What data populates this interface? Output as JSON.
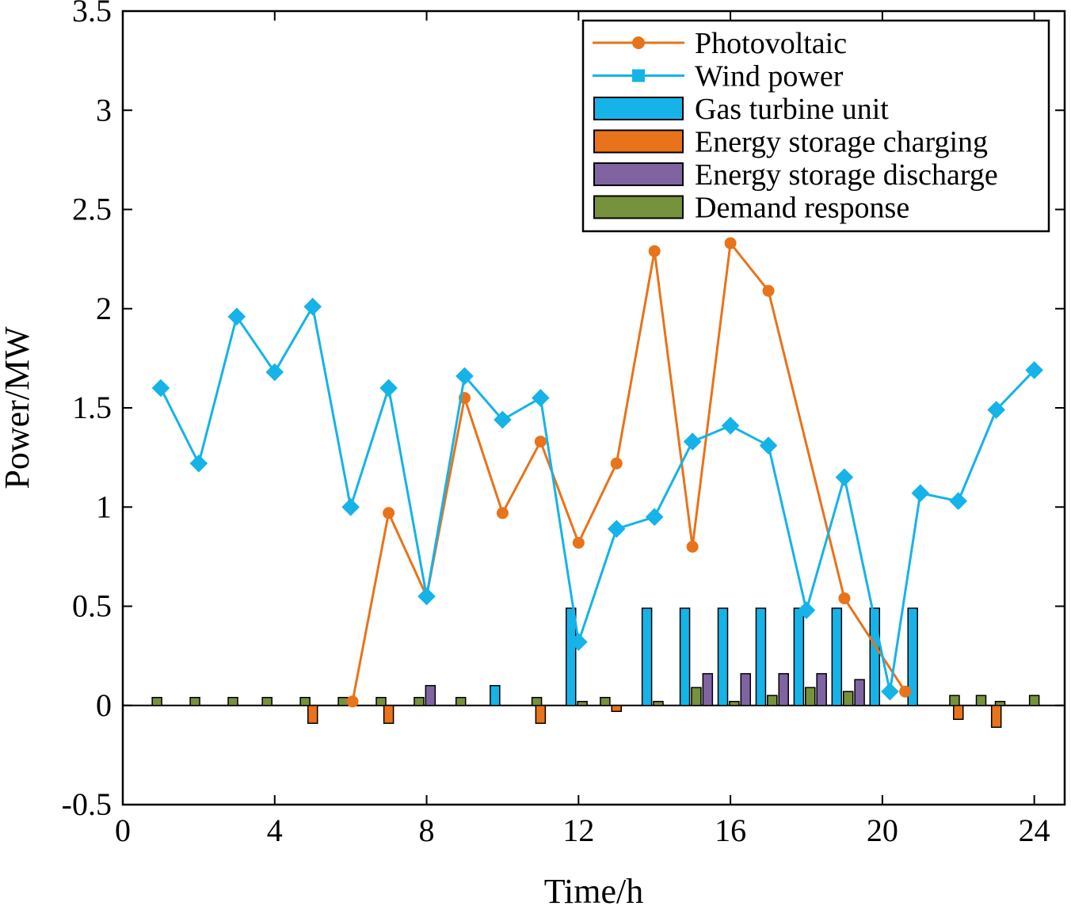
{
  "chart_data": {
    "type": "bar+line",
    "xlabel": "Time/h",
    "ylabel": "Power/MW",
    "xlim": [
      0,
      24.8
    ],
    "ylim": [
      -0.5,
      3.5
    ],
    "xticks": [
      0,
      4,
      8,
      12,
      16,
      20,
      24
    ],
    "yticks": [
      -0.5,
      0,
      0.5,
      1,
      1.5,
      2,
      2.5,
      3,
      3.5
    ],
    "ytick_labels": [
      "-0.5",
      "0",
      "0.5",
      "1",
      "1.5",
      "2",
      "2.5",
      "3",
      "3.5"
    ],
    "legend_position": "top-right",
    "lines": [
      {
        "name": "Photovoltaic",
        "color": "#E8731A",
        "marker": "circle",
        "x": [
          6.05,
          7,
          8,
          9,
          10,
          11,
          12,
          13,
          14,
          15,
          16,
          17,
          19,
          20.6
        ],
        "y": [
          0.02,
          0.97,
          0.55,
          1.55,
          0.97,
          1.33,
          0.82,
          1.22,
          2.29,
          0.8,
          2.33,
          2.09,
          0.54,
          0.07
        ]
      },
      {
        "name": "Wind power",
        "color": "#15B3E8",
        "marker": "square",
        "x": [
          1,
          2,
          3,
          4,
          5,
          6,
          7,
          8,
          9,
          10,
          11,
          12,
          13,
          14,
          15,
          16,
          17,
          18,
          19,
          20.2,
          21,
          22,
          23,
          24
        ],
        "y": [
          1.6,
          1.22,
          1.96,
          1.68,
          2.01,
          1.0,
          1.6,
          0.55,
          1.66,
          1.44,
          1.55,
          0.32,
          0.89,
          0.95,
          1.33,
          1.41,
          1.31,
          0.48,
          1.15,
          0.07,
          1.07,
          1.03,
          1.49,
          1.69
        ]
      }
    ],
    "bars": [
      {
        "name": "Gas turbine unit",
        "color": "#15B3E8",
        "x": [
          9.8,
          11.8,
          13.8,
          14.8,
          15.8,
          16.8,
          17.8,
          18.8,
          19.8,
          20.8
        ],
        "values": [
          0.1,
          0.49,
          0.49,
          0.49,
          0.49,
          0.49,
          0.49,
          0.49,
          0.49,
          0.49
        ]
      },
      {
        "name": "Energy storage charging",
        "color": "#E8731A",
        "x": [
          5,
          7,
          11,
          13,
          22,
          23
        ],
        "values": [
          -0.09,
          -0.09,
          -0.09,
          -0.03,
          -0.07,
          -0.11
        ]
      },
      {
        "name": "Energy storage discharge",
        "color": "#8064A2",
        "x": [
          8.1,
          15.4,
          16.4,
          17.4,
          18.4,
          19.4
        ],
        "values": [
          0.1,
          0.16,
          0.16,
          0.16,
          0.16,
          0.13
        ]
      },
      {
        "name": "Demand response",
        "color": "#76923C",
        "x": [
          0.9,
          1.9,
          2.9,
          3.8,
          4.8,
          5.8,
          6.8,
          7.8,
          8.9,
          10.9,
          12.1,
          12.7,
          14.1,
          15.1,
          16.1,
          17.1,
          18.1,
          19.1,
          21.9,
          22.6,
          23.1,
          24
        ],
        "values": [
          0.04,
          0.04,
          0.04,
          0.04,
          0.04,
          0.04,
          0.04,
          0.04,
          0.04,
          0.04,
          0.02,
          0.04,
          0.02,
          0.09,
          0.02,
          0.05,
          0.09,
          0.07,
          0.05,
          0.05,
          0.02,
          0.05
        ]
      }
    ],
    "legend": [
      {
        "label": "Photovoltaic",
        "kind": "line-circle",
        "color": "#E8731A"
      },
      {
        "label": "Wind power",
        "kind": "line-square",
        "color": "#15B3E8"
      },
      {
        "label": "Gas turbine unit",
        "kind": "bar",
        "color": "#15B3E8"
      },
      {
        "label": "Energy storage charging",
        "kind": "bar",
        "color": "#E8731A"
      },
      {
        "label": "Energy storage discharge",
        "kind": "bar",
        "color": "#8064A2"
      },
      {
        "label": "Demand response",
        "kind": "bar",
        "color": "#76923C"
      }
    ]
  }
}
